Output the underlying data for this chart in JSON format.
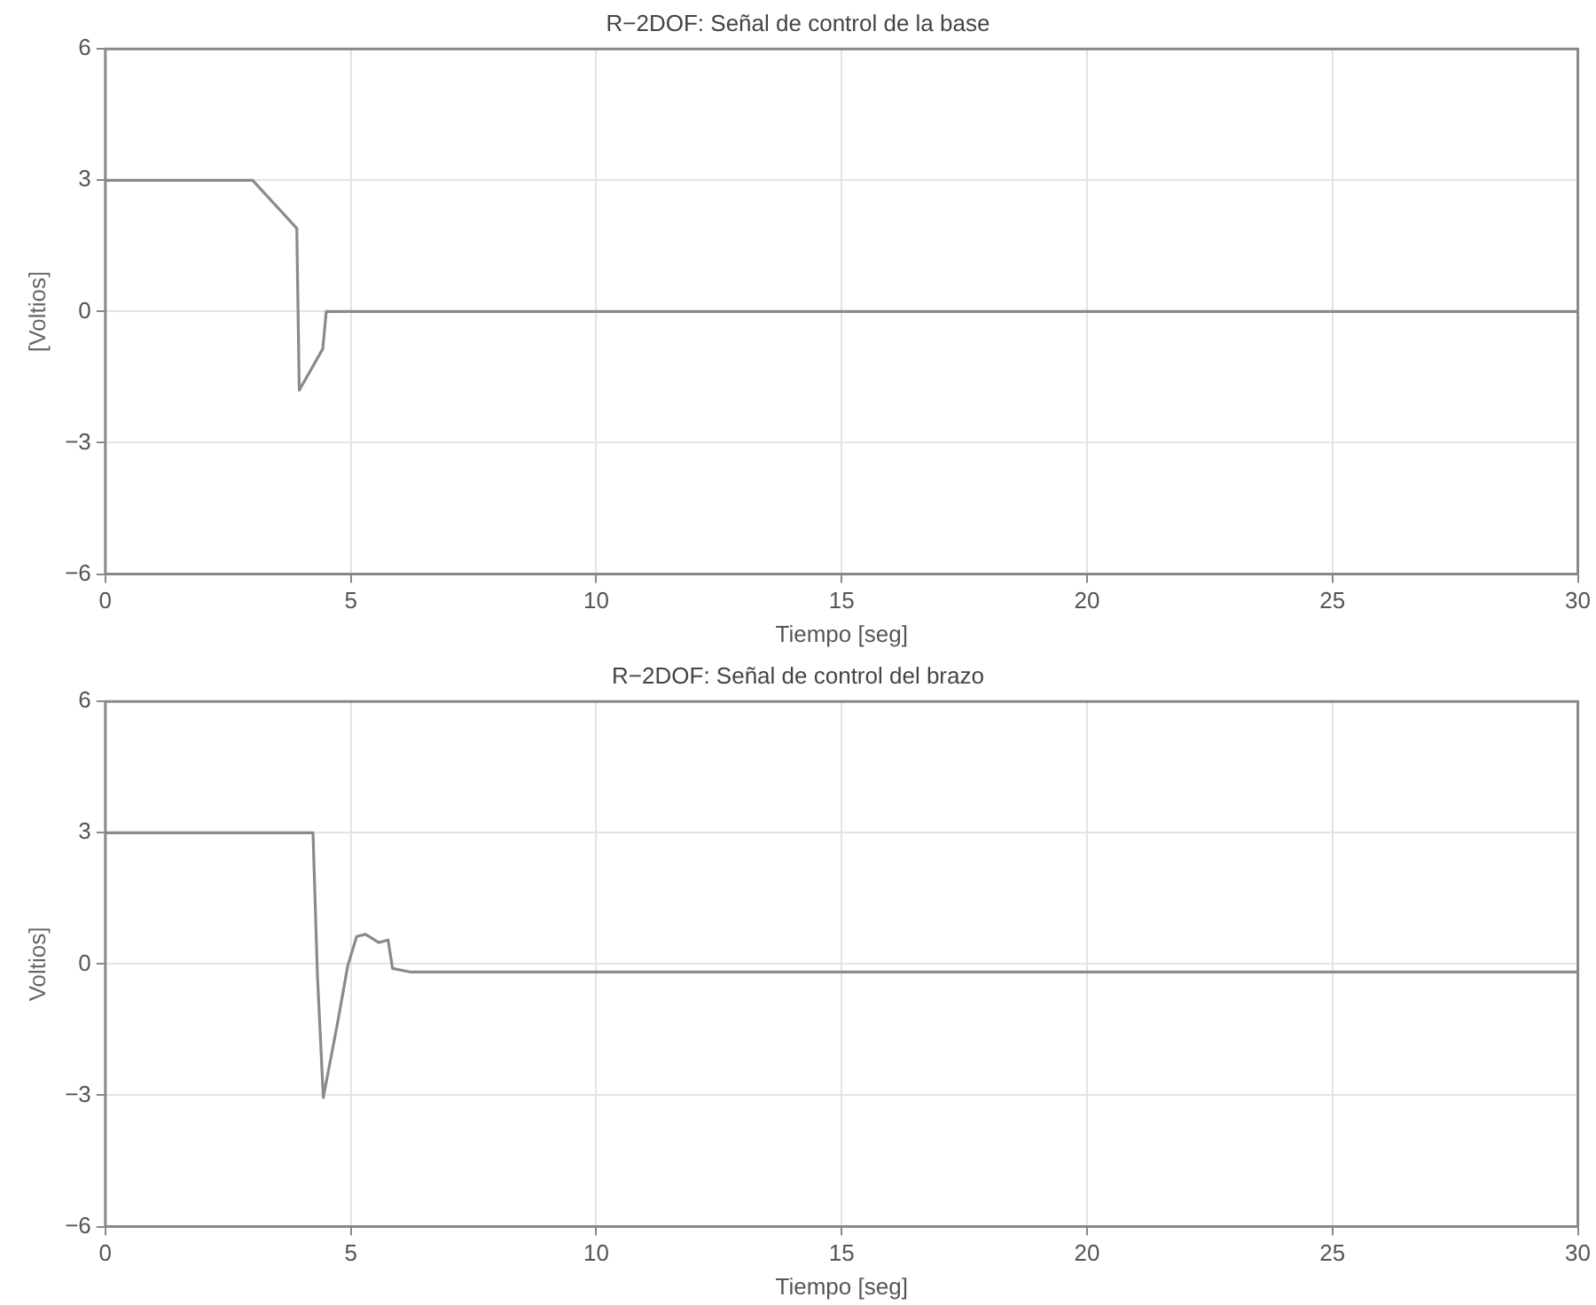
{
  "chart_data": [
    {
      "type": "line",
      "title": "R−2DOF: Señal de control de la base",
      "xlabel": "Tiempo [seg]",
      "ylabel": "[Voltios]",
      "x": [
        0,
        3.0,
        3.9,
        3.95,
        4.43,
        4.5,
        30
      ],
      "values": [
        3,
        3,
        1.9,
        -1.8,
        -0.85,
        0,
        0
      ],
      "color": "#8a8a8a",
      "xlim": [
        0,
        30
      ],
      "xticks": [
        0,
        5,
        10,
        15,
        20,
        25,
        30
      ],
      "ylim": [
        -6,
        6
      ],
      "yticks": [
        -6,
        -3,
        0,
        3,
        6
      ],
      "grid": true,
      "legend": false,
      "marker": "none",
      "line_style": "solid"
    },
    {
      "type": "line",
      "title": "R−2DOF: Señal de control del brazo",
      "xlabel": "Tiempo [seg]",
      "ylabel": "Voltios]",
      "x": [
        0,
        4.23,
        4.32,
        4.44,
        4.73,
        4.94,
        5.12,
        5.3,
        5.57,
        5.76,
        5.85,
        6.2,
        30
      ],
      "values": [
        3,
        3,
        -0.25,
        -3.05,
        -1.35,
        -0.03,
        0.63,
        0.68,
        0.49,
        0.55,
        -0.1,
        -0.18,
        -0.18
      ],
      "color": "#8a8a8a",
      "xlim": [
        0,
        30
      ],
      "xticks": [
        0,
        5,
        10,
        15,
        20,
        25,
        30
      ],
      "ylim": [
        -6,
        6
      ],
      "yticks": [
        -6,
        -3,
        0,
        3,
        6
      ],
      "grid": true,
      "legend": false,
      "marker": "none",
      "line_style": "solid"
    }
  ]
}
